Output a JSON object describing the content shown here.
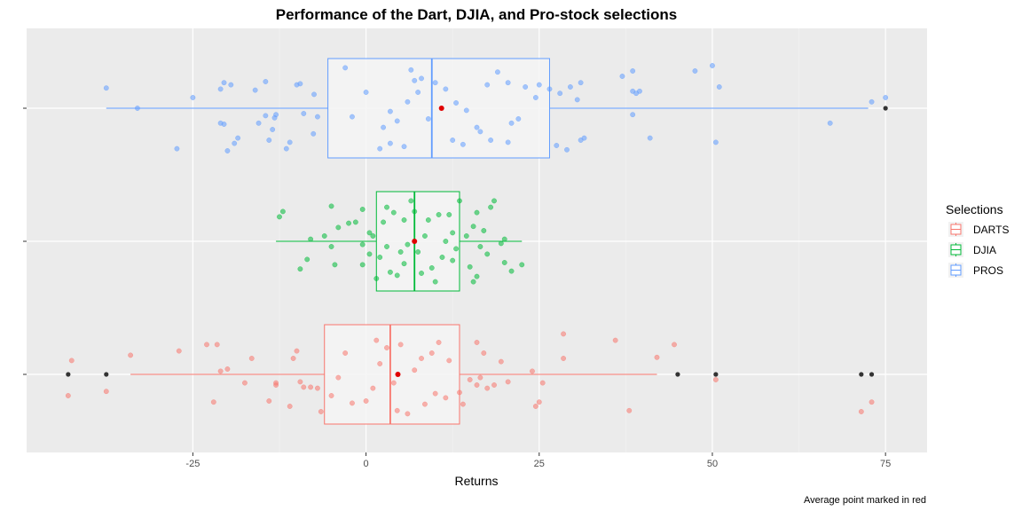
{
  "chart_data": {
    "type": "boxplot",
    "title": "Performance of the Dart, DJIA, and Pro-stock selections",
    "xlabel": "Returns",
    "ylabel": "",
    "caption": "Average point marked in red",
    "xlim": [
      -49,
      81
    ],
    "x_ticks": [
      -25,
      0,
      25,
      50,
      75
    ],
    "x_tick_labels": [
      "-25",
      "0",
      "25",
      "50",
      "75"
    ],
    "grid": true,
    "orientation": "horizontal",
    "legend": {
      "title": "Selections",
      "placement": "right",
      "entries": [
        "DARTS",
        "DJIA",
        "PROS"
      ]
    },
    "colors": {
      "DARTS": "#F8766D",
      "DJIA": "#00BA38",
      "PROS": "#619CFF",
      "mean": "#E00000",
      "outlier": "#333333",
      "panel": "#EBEBEB",
      "box_fill": "#F5F5F5"
    },
    "series": [
      {
        "name": "PROS",
        "box": {
          "whisker_low": -37.5,
          "q1": -5.5,
          "median": 9.5,
          "q3": 26.5,
          "whisker_high": 72.5
        },
        "mean": 10.9,
        "outliers": [
          75
        ],
        "points": [
          [
            -27.3,
            0.38
          ],
          [
            -20,
            0.4
          ],
          [
            -19,
            0.33
          ],
          [
            -18.5,
            0.28
          ],
          [
            -14,
            0.3
          ],
          [
            -13.5,
            0.2
          ],
          [
            -11.5,
            0.38
          ],
          [
            -11,
            0.32
          ],
          [
            -7.6,
            0.24
          ],
          [
            -21,
            0.14
          ],
          [
            -20.5,
            0.15
          ],
          [
            -15.5,
            0.14
          ],
          [
            -14.5,
            0.07
          ],
          [
            -13,
            0.06
          ],
          [
            -9,
            0.05
          ],
          [
            -7,
            0.08
          ],
          [
            -13.2,
            0.09
          ],
          [
            -33,
            0.0
          ],
          [
            -21,
            -0.18
          ],
          [
            -20.5,
            -0.24
          ],
          [
            -19.5,
            -0.22
          ],
          [
            -16,
            -0.17
          ],
          [
            -14.5,
            -0.25
          ],
          [
            -10,
            -0.22
          ],
          [
            -9.5,
            -0.23
          ],
          [
            -7.5,
            -0.13
          ],
          [
            -37.5,
            -0.19
          ],
          [
            -3,
            -0.38
          ],
          [
            2,
            0.38
          ],
          [
            3.5,
            0.33
          ],
          [
            5.5,
            0.36
          ],
          [
            2.5,
            0.18
          ],
          [
            4.5,
            0.12
          ],
          [
            9,
            0.1
          ],
          [
            3.5,
            0.03
          ],
          [
            6,
            -0.06
          ],
          [
            7.5,
            -0.15
          ],
          [
            7,
            -0.26
          ],
          [
            6.5,
            -0.36
          ],
          [
            10,
            -0.24
          ],
          [
            8,
            -0.28
          ],
          [
            11.5,
            -0.18
          ],
          [
            13,
            -0.05
          ],
          [
            14.5,
            0.02
          ],
          [
            16.5,
            0.22
          ],
          [
            18,
            0.3
          ],
          [
            20.5,
            0.32
          ],
          [
            21,
            0.14
          ],
          [
            22,
            0.1
          ],
          [
            12.5,
            0.3
          ],
          [
            14,
            0.34
          ],
          [
            16,
            0.18
          ],
          [
            17.5,
            -0.22
          ],
          [
            19,
            -0.34
          ],
          [
            20.5,
            -0.24
          ],
          [
            23,
            -0.2
          ],
          [
            25,
            -0.22
          ],
          [
            26.5,
            -0.18
          ],
          [
            24.5,
            -0.1
          ],
          [
            27.5,
            0.35
          ],
          [
            29,
            0.39
          ],
          [
            31,
            0.3
          ],
          [
            31.5,
            0.28
          ],
          [
            29.5,
            -0.2
          ],
          [
            31,
            -0.24
          ],
          [
            28,
            -0.14
          ],
          [
            30.5,
            -0.08
          ],
          [
            38.5,
            0.06
          ],
          [
            38.5,
            -0.16
          ],
          [
            39,
            -0.14
          ],
          [
            39.5,
            -0.16
          ],
          [
            37,
            -0.3
          ],
          [
            38.5,
            -0.35
          ],
          [
            41,
            0.28
          ],
          [
            47.5,
            -0.35
          ],
          [
            50,
            -0.4
          ],
          [
            50.5,
            0.32
          ],
          [
            51,
            -0.2
          ],
          [
            67,
            0.14
          ],
          [
            73,
            -0.06
          ],
          [
            75,
            -0.1
          ],
          [
            -25,
            -0.1
          ],
          [
            -2,
            0.08
          ],
          [
            0,
            -0.15
          ]
        ]
      },
      {
        "name": "DJIA",
        "box": {
          "whisker_low": -13,
          "q1": 1.5,
          "median": 7,
          "q3": 13.5,
          "whisker_high": 22.5
        },
        "mean": 7.0,
        "outliers": [],
        "points": [
          [
            -9.5,
            0.26
          ],
          [
            -8.5,
            0.17
          ],
          [
            -4.5,
            0.22
          ],
          [
            -5,
            0.05
          ],
          [
            -6,
            -0.05
          ],
          [
            -4,
            -0.13
          ],
          [
            -2.5,
            -0.17
          ],
          [
            -12.5,
            -0.23
          ],
          [
            -12,
            -0.28
          ],
          [
            -5,
            -0.33
          ],
          [
            -1.5,
            -0.18
          ],
          [
            -0.5,
            0.22
          ],
          [
            -0.5,
            0.03
          ],
          [
            0.5,
            -0.08
          ],
          [
            1,
            -0.05
          ],
          [
            0.5,
            0.12
          ],
          [
            2,
            0.15
          ],
          [
            3.5,
            0.29
          ],
          [
            1.5,
            0.35
          ],
          [
            4.5,
            0.32
          ],
          [
            5.5,
            0.21
          ],
          [
            6,
            0.03
          ],
          [
            7.5,
            0.1
          ],
          [
            8.5,
            -0.05
          ],
          [
            9,
            -0.2
          ],
          [
            10.5,
            -0.25
          ],
          [
            11,
            0.15
          ],
          [
            12.5,
            0.18
          ],
          [
            12,
            -0.25
          ],
          [
            12.5,
            -0.08
          ],
          [
            13,
            0.07
          ],
          [
            10,
            0.38
          ],
          [
            8,
            0.3
          ],
          [
            9.5,
            0.25
          ],
          [
            4,
            -0.27
          ],
          [
            3,
            -0.32
          ],
          [
            2.5,
            -0.18
          ],
          [
            5.5,
            -0.2
          ],
          [
            6.5,
            -0.38
          ],
          [
            7,
            -0.28
          ],
          [
            15.5,
            0.38
          ],
          [
            16,
            0.33
          ],
          [
            15,
            0.24
          ],
          [
            16.5,
            0.05
          ],
          [
            17.5,
            0.12
          ],
          [
            17,
            -0.1
          ],
          [
            16,
            -0.27
          ],
          [
            15.5,
            -0.14
          ],
          [
            18,
            -0.32
          ],
          [
            18.5,
            -0.38
          ],
          [
            20,
            -0.02
          ],
          [
            19.5,
            0.02
          ],
          [
            20,
            0.2
          ],
          [
            22.5,
            0.22
          ],
          [
            21,
            0.28
          ],
          [
            14.5,
            -0.05
          ],
          [
            11.5,
            0.0
          ],
          [
            13.5,
            -0.38
          ],
          [
            -8,
            -0.02
          ],
          [
            -0.5,
            -0.3
          ],
          [
            3,
            0.05
          ],
          [
            5,
            0.1
          ]
        ]
      },
      {
        "name": "DARTS",
        "box": {
          "whisker_low": -34,
          "q1": -6,
          "median": 3.5,
          "q3": 13.5,
          "whisker_high": 42
        },
        "mean": 4.6,
        "outliers": [
          -43,
          -37.5,
          45,
          50.5,
          71.5,
          73
        ],
        "points": [
          [
            -43,
            0.2
          ],
          [
            -37.5,
            0.16
          ],
          [
            -34,
            -0.18
          ],
          [
            -27,
            -0.22
          ],
          [
            -23,
            -0.28
          ],
          [
            -22,
            0.26
          ],
          [
            -21.5,
            -0.28
          ],
          [
            -21,
            -0.03
          ],
          [
            -20,
            -0.05
          ],
          [
            -17.5,
            0.08
          ],
          [
            -16.5,
            -0.15
          ],
          [
            -14,
            0.25
          ],
          [
            -13,
            0.1
          ],
          [
            -13,
            0.08
          ],
          [
            -11,
            0.3
          ],
          [
            -10.5,
            -0.15
          ],
          [
            -10,
            -0.22
          ],
          [
            -9,
            0.12
          ],
          [
            -9.5,
            0.07
          ],
          [
            -8,
            0.12
          ],
          [
            -7,
            0.13
          ],
          [
            -6.5,
            0.35
          ],
          [
            -5,
            0.2
          ],
          [
            -4,
            0.03
          ],
          [
            -3,
            -0.2
          ],
          [
            -2,
            0.27
          ],
          [
            0,
            0.25
          ],
          [
            1,
            0.13
          ],
          [
            2,
            -0.1
          ],
          [
            1.5,
            -0.32
          ],
          [
            3,
            -0.25
          ],
          [
            4,
            0.08
          ],
          [
            4.5,
            0.34
          ],
          [
            6,
            0.37
          ],
          [
            7,
            -0.04
          ],
          [
            8,
            -0.15
          ],
          [
            9.5,
            -0.2
          ],
          [
            10,
            0.18
          ],
          [
            11.5,
            0.22
          ],
          [
            12,
            -0.13
          ],
          [
            13.5,
            0.17
          ],
          [
            14,
            0.28
          ],
          [
            15,
            0.05
          ],
          [
            16,
            0.1
          ],
          [
            16.5,
            0.03
          ],
          [
            17.5,
            0.13
          ],
          [
            18.5,
            0.1
          ],
          [
            20.5,
            0.07
          ],
          [
            17,
            -0.2
          ],
          [
            16,
            -0.3
          ],
          [
            19.5,
            -0.12
          ],
          [
            24.5,
            0.3
          ],
          [
            25,
            0.26
          ],
          [
            24,
            -0.03
          ],
          [
            25.5,
            0.08
          ],
          [
            28.5,
            -0.15
          ],
          [
            28.5,
            -0.38
          ],
          [
            36,
            -0.32
          ],
          [
            38,
            0.34
          ],
          [
            42,
            -0.16
          ],
          [
            44.5,
            -0.28
          ],
          [
            50.5,
            0.05
          ],
          [
            71.5,
            0.35
          ],
          [
            73,
            0.26
          ],
          [
            -42.5,
            -0.13
          ],
          [
            5,
            -0.28
          ],
          [
            8.5,
            0.28
          ],
          [
            10.5,
            -0.3
          ]
        ]
      }
    ]
  }
}
